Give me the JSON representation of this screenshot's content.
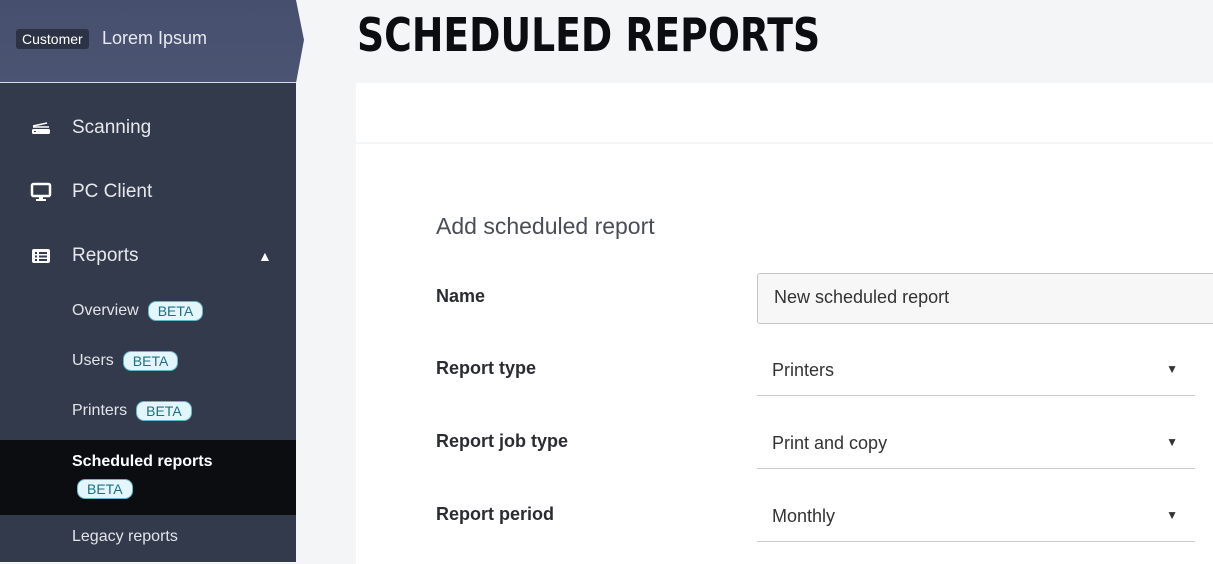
{
  "brand": {
    "tag": "Customer",
    "name": "Lorem Ipsum"
  },
  "nav": [
    {
      "label": "Scanning",
      "icon": "scanner-icon"
    },
    {
      "label": "PC Client",
      "icon": "monitor-icon"
    },
    {
      "label": "Reports",
      "icon": "table-list-icon"
    }
  ],
  "reports_sub": [
    {
      "label": "Overview",
      "badge": "BETA"
    },
    {
      "label": "Users",
      "badge": "BETA"
    },
    {
      "label": "Printers",
      "badge": "BETA"
    },
    {
      "label": "Scheduled reports",
      "badge": "BETA",
      "active": true
    },
    {
      "label": "Legacy reports"
    }
  ],
  "page": {
    "title": "SCHEDULED REPORTS"
  },
  "form": {
    "section_title": "Add scheduled report",
    "name_label": "Name",
    "name_value": "New scheduled report",
    "report_type_label": "Report type",
    "report_type_value": "Printers",
    "job_type_label": "Report job type",
    "job_type_value": "Print and copy",
    "period_label": "Report period",
    "period_value": "Monthly"
  },
  "colors": {
    "sidebar": "#323a4b",
    "active": "#0b0d11",
    "badge_bg": "#e3f6fb",
    "badge_text": "#1f6f86"
  }
}
